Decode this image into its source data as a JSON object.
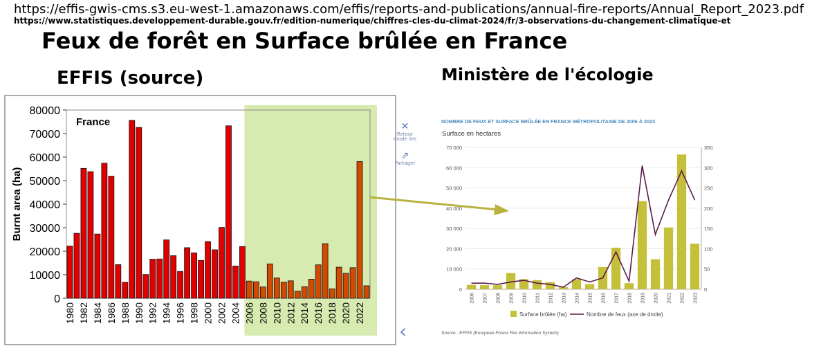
{
  "header": {
    "url_effis": "https://effis-gwis-cms.s3.eu-west-1.amazonaws.com/effis/reports-and-publications/annual-fire-reports/Annual_Report_2023.pdf",
    "url_ministere": "https://www.statistiques.developpement-durable.gouv.fr/edition-numerique/chiffres-cles-du-climat-2024/fr/3-observations-du-changement-climatique-et",
    "title": "Feux de forêt en Surface brûlée en France",
    "left_heading": "EFFIS (source)",
    "right_heading": "Ministère de l'écologie"
  },
  "side_panel": {
    "items": [
      {
        "icon": "close-icon",
        "label_line1": "Retour",
        "label_line2": "mode lire"
      },
      {
        "icon": "share-icon",
        "label_line1": "Partager",
        "label_line2": ""
      }
    ]
  },
  "colors": {
    "bar_red": "#e10000",
    "bar_orange": "#d24a00",
    "highlight": "#d7eab0",
    "bar_olive": "#c4c03a",
    "line_purple": "#5a1a4a",
    "arrow": "#b8b23e",
    "ministere_title": "#4a8bc0"
  },
  "chart_data": [
    {
      "type": "bar",
      "title": "France",
      "ylabel": "Burnt area (ha)",
      "xlabel": "",
      "ylim": [
        0,
        80000
      ],
      "yticks": [
        0,
        10000,
        20000,
        30000,
        40000,
        50000,
        60000,
        70000,
        80000
      ],
      "x": [
        1980,
        1981,
        1982,
        1983,
        1984,
        1985,
        1986,
        1987,
        1988,
        1989,
        1990,
        1991,
        1992,
        1993,
        1994,
        1995,
        1996,
        1997,
        1998,
        1999,
        2000,
        2001,
        2002,
        2003,
        2004,
        2005,
        2006,
        2007,
        2008,
        2009,
        2010,
        2011,
        2012,
        2013,
        2014,
        2015,
        2016,
        2017,
        2018,
        2019,
        2020,
        2021,
        2022,
        2023
      ],
      "values": [
        22200,
        27600,
        55200,
        53800,
        27300,
        57400,
        51900,
        14300,
        6800,
        75600,
        72600,
        10100,
        16600,
        16700,
        24800,
        18100,
        11400,
        21500,
        19300,
        16100,
        24100,
        20600,
        30100,
        73300,
        13700,
        22000,
        7300,
        7000,
        4800,
        14600,
        8600,
        6800,
        7400,
        3000,
        4900,
        8100,
        14200,
        23200,
        4000,
        13200,
        10600,
        13000,
        58100,
        5300
      ],
      "highlight_range": [
        2006,
        2023
      ],
      "xtick_labels": [
        "1980",
        "1982",
        "1984",
        "1986",
        "1988",
        "1990",
        "1992",
        "1994",
        "1996",
        "1998",
        "2000",
        "2002",
        "2004",
        "2006",
        "2008",
        "2010",
        "2012",
        "2014",
        "2016",
        "2018",
        "2020",
        "2022"
      ]
    },
    {
      "type": "bar",
      "title": "NOMBRE DE FEUX ET SURFACE BRÛLÉE EN FRANCE MÉTROPOLITAINE DE 2006 À 2023",
      "subtitle": "Surface en hectares",
      "categories": [
        "2006",
        "2007",
        "2008",
        "2009",
        "2010",
        "2011",
        "2012",
        "2013",
        "2014",
        "2015",
        "2016",
        "2017",
        "2018",
        "2019",
        "2020",
        "2021",
        "2022",
        "2023"
      ],
      "ylim": [
        0,
        70000
      ],
      "yticks": [
        "0",
        "10 000",
        "20 000",
        "30 000",
        "40 000",
        "50 000",
        "60 000",
        "70 000"
      ],
      "y2lim": [
        0,
        350
      ],
      "y2ticks": [
        "0",
        "50",
        "100",
        "150",
        "200",
        "250",
        "300",
        "350"
      ],
      "series": [
        {
          "name": "Surface brûlée (ha)",
          "type": "bar",
          "values": [
            2200,
            2000,
            2000,
            8000,
            5000,
            4500,
            3500,
            1000,
            5000,
            2500,
            11000,
            20500,
            3000,
            43500,
            14800,
            30500,
            66500,
            22500
          ]
        },
        {
          "name": "Nombre de feux (axe de droite)",
          "type": "line",
          "values": [
            15,
            15,
            12,
            18,
            22,
            15,
            12,
            5,
            28,
            18,
            28,
            92,
            20,
            305,
            135,
            220,
            292,
            220
          ]
        }
      ],
      "source": "Source : EFFIS (European Forest Fire Information System)"
    }
  ]
}
